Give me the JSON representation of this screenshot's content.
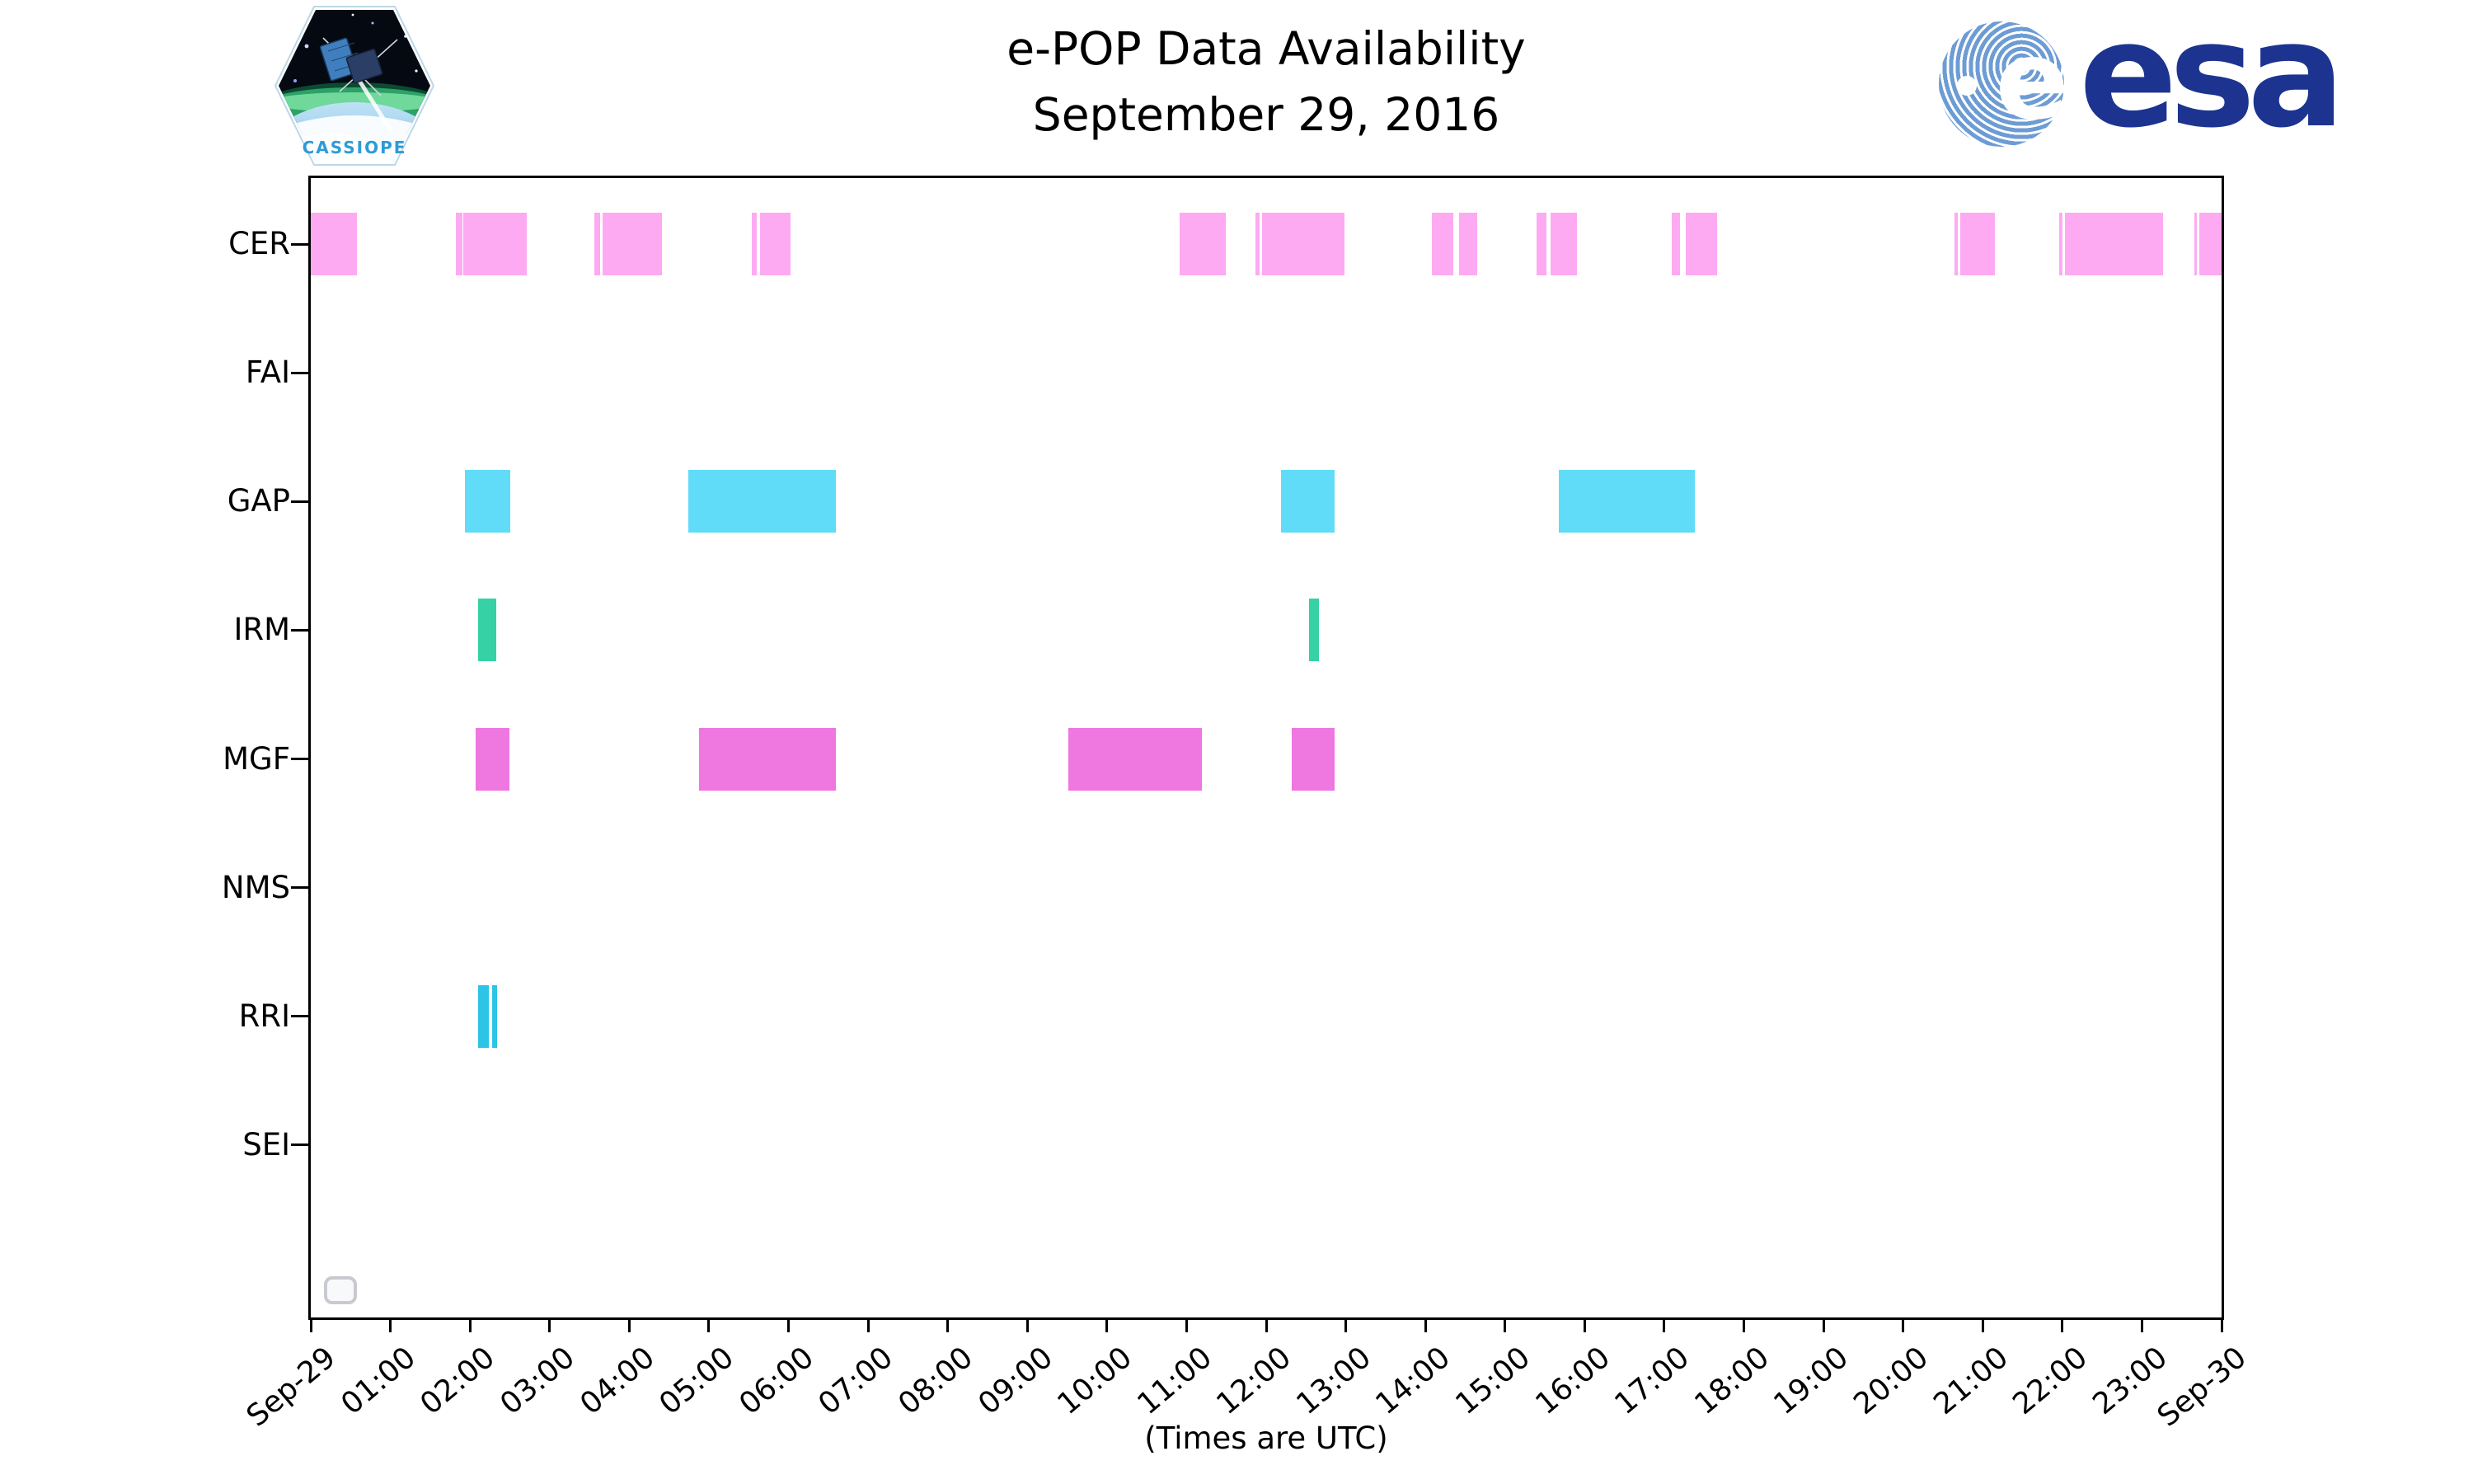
{
  "header": {
    "title_line1": "e-POP Data Availability",
    "title_line2": "September 29, 2016"
  },
  "logos": {
    "cassiope_label": "CASSIOPE",
    "esa_label": "esa"
  },
  "axis": {
    "caption": "(Times are UTC)"
  },
  "chart_data": {
    "type": "timeline",
    "title": "e-POP Data Availability September 29, 2016",
    "x_range_hours": [
      0,
      24
    ],
    "x_tick_labels": [
      "Sep-29",
      "01:00",
      "02:00",
      "03:00",
      "04:00",
      "05:00",
      "06:00",
      "07:00",
      "08:00",
      "09:00",
      "10:00",
      "11:00",
      "12:00",
      "13:00",
      "14:00",
      "15:00",
      "16:00",
      "17:00",
      "18:00",
      "19:00",
      "20:00",
      "21:00",
      "22:00",
      "23:00",
      "Sep-30"
    ],
    "rows": [
      "CER",
      "FAI",
      "GAP",
      "IRM",
      "MGF",
      "NMS",
      "RRI",
      "SEI"
    ],
    "colors": {
      "CER": "#fdaaf2",
      "FAI": "#aaaaaa",
      "GAP": "#60dcf8",
      "IRM": "#36d1a5",
      "MGF": "#ee77e0",
      "NMS": "#aaaaaa",
      "RRI": "#2cc4e7",
      "SEI": "#aaaaaa"
    },
    "series": [
      {
        "name": "CER",
        "intervals": [
          [
            0.0,
            0.58
          ],
          [
            1.82,
            1.9
          ],
          [
            1.92,
            2.71
          ],
          [
            3.56,
            3.63
          ],
          [
            3.67,
            4.41
          ],
          [
            5.54,
            5.6
          ],
          [
            5.64,
            6.03
          ],
          [
            10.91,
            11.49
          ],
          [
            11.87,
            11.92
          ],
          [
            11.95,
            12.98
          ],
          [
            14.08,
            14.35
          ],
          [
            14.42,
            14.65
          ],
          [
            15.4,
            15.52
          ],
          [
            15.57,
            15.9
          ],
          [
            17.09,
            17.2
          ],
          [
            17.27,
            17.66
          ],
          [
            20.65,
            20.69
          ],
          [
            20.72,
            21.15
          ],
          [
            21.96,
            22.0
          ],
          [
            22.03,
            23.27
          ],
          [
            23.66,
            23.69
          ],
          [
            23.72,
            24.0
          ]
        ]
      },
      {
        "name": "FAI",
        "intervals": []
      },
      {
        "name": "GAP",
        "intervals": [
          [
            1.94,
            2.51
          ],
          [
            4.74,
            6.6
          ],
          [
            12.19,
            12.86
          ],
          [
            15.68,
            17.38
          ]
        ]
      },
      {
        "name": "IRM",
        "intervals": [
          [
            2.1,
            2.33
          ],
          [
            12.54,
            12.66
          ]
        ]
      },
      {
        "name": "MGF",
        "intervals": [
          [
            2.07,
            2.5
          ],
          [
            4.88,
            6.6
          ],
          [
            9.51,
            11.19
          ],
          [
            12.32,
            12.86
          ]
        ]
      },
      {
        "name": "NMS",
        "intervals": []
      },
      {
        "name": "RRI",
        "intervals": [
          [
            2.1,
            2.24
          ],
          [
            2.28,
            2.34
          ]
        ]
      },
      {
        "name": "SEI",
        "intervals": []
      }
    ]
  }
}
